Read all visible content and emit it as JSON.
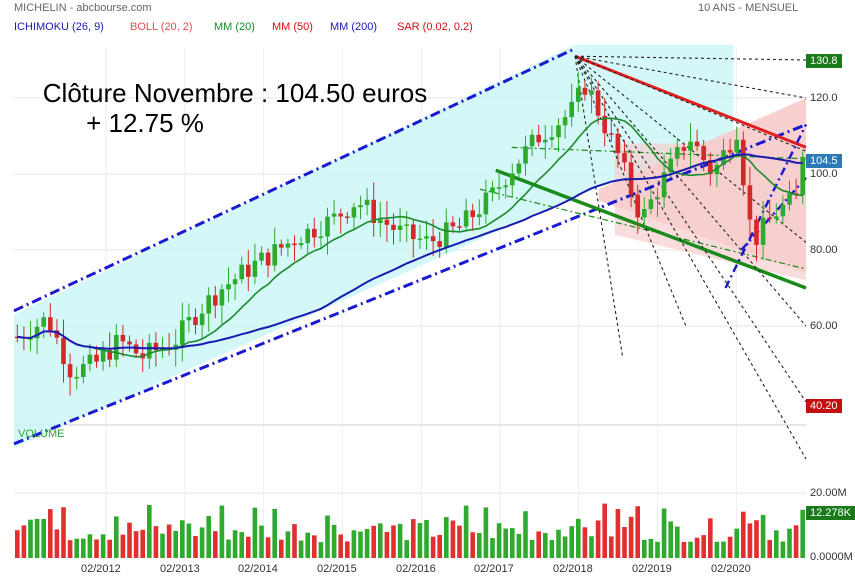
{
  "header": {
    "symbol": "MICHELIN",
    "source": "abcbourse.com",
    "period": "10 ANS - MENSUEL"
  },
  "indicators": [
    {
      "label": "ICHIMOKU (26, 9)",
      "color": "#1a1ab0"
    },
    {
      "label": "BOLL (20, 2)",
      "color": "#e05050"
    },
    {
      "label": "MM (20)",
      "color": "#1a8a2a"
    },
    {
      "label": "MM (50)",
      "color": "#d01010"
    },
    {
      "label": "MM (200)",
      "color": "#1a1ab0"
    },
    {
      "label": "SAR (0.02, 0.2)",
      "color": "#d01010"
    }
  ],
  "annotation": {
    "line1": "Clôture Novembre : 104.50 euros",
    "line2": "+ 12.75 %"
  },
  "chart_data": {
    "type": "candlestick",
    "price_axis": {
      "ticks": [
        "120.0",
        "100.0",
        "80.00",
        "60.00"
      ],
      "min": 35,
      "max": 135
    },
    "badges": [
      {
        "text": "130.8",
        "color": "#1a7a1a"
      },
      {
        "text": "104.5",
        "color": "#2a7ab8"
      },
      {
        "text": "40.20",
        "color": "#c01010"
      }
    ],
    "x_labels": [
      "02/2012",
      "02/2013",
      "02/2014",
      "02/2015",
      "02/2016",
      "02/2017",
      "02/2018",
      "02/2019",
      "02/2020"
    ],
    "x_range": [
      "2010-12",
      "2020-11"
    ],
    "close_anchors": [
      [
        2010.9,
        57
      ],
      [
        2011.3,
        62
      ],
      [
        2011.6,
        48
      ],
      [
        2011.9,
        50
      ],
      [
        2012.2,
        56
      ],
      [
        2012.5,
        52
      ],
      [
        2012.9,
        56
      ],
      [
        2013.2,
        64
      ],
      [
        2013.5,
        70
      ],
      [
        2013.9,
        76
      ],
      [
        2014.2,
        80
      ],
      [
        2014.5,
        84
      ],
      [
        2014.9,
        88
      ],
      [
        2015.2,
        93
      ],
      [
        2015.5,
        88
      ],
      [
        2015.8,
        84
      ],
      [
        2016.1,
        82
      ],
      [
        2016.5,
        86
      ],
      [
        2016.9,
        94
      ],
      [
        2017.1,
        100
      ],
      [
        2017.5,
        110
      ],
      [
        2017.9,
        116
      ],
      [
        2018.1,
        124
      ],
      [
        2018.2,
        119
      ],
      [
        2018.5,
        105
      ],
      [
        2018.8,
        88
      ],
      [
        2019.0,
        96
      ],
      [
        2019.4,
        110
      ],
      [
        2019.7,
        100
      ],
      [
        2020.0,
        112
      ],
      [
        2020.2,
        82
      ],
      [
        2020.5,
        90
      ],
      [
        2020.8,
        94
      ],
      [
        2020.92,
        104.5
      ]
    ],
    "volume": {
      "title": "VOLUME",
      "ticks": [
        "20.00M",
        "0.0000M"
      ],
      "max": 34,
      "badge": {
        "text": "12.278K",
        "color": "#1a7a1a"
      }
    },
    "grid": true
  }
}
